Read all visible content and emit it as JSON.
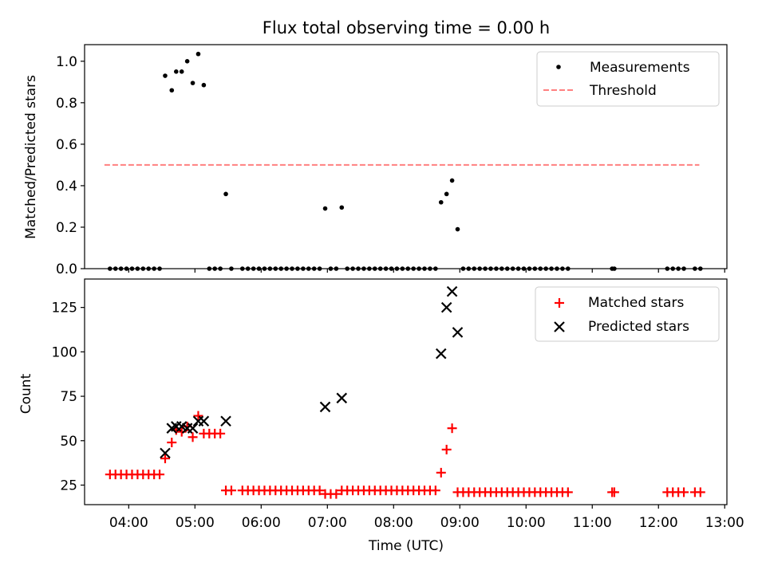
{
  "title": "Flux total observing time = 0.00 h",
  "chart_data": [
    {
      "type": "scatter",
      "panel": "top",
      "ylabel": "Matched/Predicted stars",
      "xlabel": "",
      "ylim": [
        0,
        1.08
      ],
      "yticks": [
        0.0,
        0.2,
        0.4,
        0.6,
        0.8,
        1.0
      ],
      "ytick_labels": [
        "0.0",
        "0.2",
        "0.4",
        "0.6",
        "0.8",
        "1.0"
      ],
      "xlim": [
        "03:20",
        "13:02"
      ],
      "legend_position": "top-right",
      "grid": false,
      "series": [
        {
          "name": "Measurements",
          "marker": "dot",
          "color": "#000000",
          "points": [
            [
              "03:43",
              0
            ],
            [
              "03:48",
              0
            ],
            [
              "03:53",
              0
            ],
            [
              "03:58",
              0
            ],
            [
              "04:03",
              0
            ],
            [
              "04:08",
              0
            ],
            [
              "04:13",
              0
            ],
            [
              "04:18",
              0
            ],
            [
              "04:23",
              0
            ],
            [
              "04:28",
              0
            ],
            [
              "04:33",
              0.93
            ],
            [
              "04:39",
              0.86
            ],
            [
              "04:43",
              0.95
            ],
            [
              "04:48",
              0.95
            ],
            [
              "04:53",
              1.0
            ],
            [
              "04:58",
              0.895
            ],
            [
              "05:03",
              1.035
            ],
            [
              "05:08",
              0.885
            ],
            [
              "05:13",
              0
            ],
            [
              "05:18",
              0
            ],
            [
              "05:23",
              0
            ],
            [
              "05:28",
              0.36
            ],
            [
              "05:33",
              0
            ],
            [
              "05:43",
              0
            ],
            [
              "05:48",
              0
            ],
            [
              "05:53",
              0
            ],
            [
              "05:58",
              0
            ],
            [
              "06:03",
              0
            ],
            [
              "06:08",
              0
            ],
            [
              "06:13",
              0
            ],
            [
              "06:18",
              0
            ],
            [
              "06:23",
              0
            ],
            [
              "06:28",
              0
            ],
            [
              "06:33",
              0
            ],
            [
              "06:38",
              0
            ],
            [
              "06:43",
              0
            ],
            [
              "06:48",
              0
            ],
            [
              "06:53",
              0
            ],
            [
              "06:58",
              0.29
            ],
            [
              "07:03",
              0
            ],
            [
              "07:08",
              0
            ],
            [
              "07:13",
              0.295
            ],
            [
              "07:18",
              0
            ],
            [
              "07:23",
              0
            ],
            [
              "07:28",
              0
            ],
            [
              "07:33",
              0
            ],
            [
              "07:38",
              0
            ],
            [
              "07:43",
              0
            ],
            [
              "07:48",
              0
            ],
            [
              "07:53",
              0
            ],
            [
              "07:58",
              0
            ],
            [
              "08:03",
              0
            ],
            [
              "08:08",
              0
            ],
            [
              "08:13",
              0
            ],
            [
              "08:18",
              0
            ],
            [
              "08:23",
              0
            ],
            [
              "08:28",
              0
            ],
            [
              "08:33",
              0
            ],
            [
              "08:38",
              0
            ],
            [
              "08:43",
              0.32
            ],
            [
              "08:48",
              0.36
            ],
            [
              "08:53",
              0.425
            ],
            [
              "08:58",
              0.19
            ],
            [
              "09:03",
              0
            ],
            [
              "09:08",
              0
            ],
            [
              "09:13",
              0
            ],
            [
              "09:18",
              0
            ],
            [
              "09:23",
              0
            ],
            [
              "09:28",
              0
            ],
            [
              "09:33",
              0
            ],
            [
              "09:38",
              0
            ],
            [
              "09:43",
              0
            ],
            [
              "09:48",
              0
            ],
            [
              "09:53",
              0
            ],
            [
              "09:58",
              0
            ],
            [
              "10:03",
              0
            ],
            [
              "10:08",
              0
            ],
            [
              "10:13",
              0
            ],
            [
              "10:18",
              0
            ],
            [
              "10:23",
              0
            ],
            [
              "10:28",
              0
            ],
            [
              "10:33",
              0
            ],
            [
              "10:38",
              0
            ],
            [
              "11:18",
              0
            ],
            [
              "11:20",
              0
            ],
            [
              "12:08",
              0
            ],
            [
              "12:13",
              0
            ],
            [
              "12:18",
              0
            ],
            [
              "12:23",
              0
            ],
            [
              "12:33",
              0
            ],
            [
              "12:38",
              0
            ]
          ]
        },
        {
          "name": "Threshold",
          "line": "dashed",
          "color": "#ff8080",
          "points": [
            [
              "03:38",
              0.5
            ],
            [
              "12:37",
              0.5
            ]
          ]
        }
      ]
    },
    {
      "type": "scatter",
      "panel": "bottom",
      "xlabel": "Time (UTC)",
      "ylabel": "Count",
      "ylim": [
        14,
        141
      ],
      "yticks": [
        25,
        50,
        75,
        100,
        125
      ],
      "ytick_labels": [
        "25",
        "50",
        "75",
        "100",
        "125"
      ],
      "xlim": [
        "03:20",
        "13:02"
      ],
      "xticks": [
        "04:00",
        "05:00",
        "06:00",
        "07:00",
        "08:00",
        "09:00",
        "10:00",
        "11:00",
        "12:00",
        "13:00"
      ],
      "xtick_labels": [
        "04:00",
        "05:00",
        "06:00",
        "07:00",
        "08:00",
        "09:00",
        "10:00",
        "11:00",
        "12:00",
        "13:00"
      ],
      "legend_position": "top-right",
      "grid": false,
      "series": [
        {
          "name": "Matched stars",
          "marker": "plus",
          "color": "#ff0000",
          "points": [
            [
              "03:43",
              31
            ],
            [
              "03:48",
              31
            ],
            [
              "03:53",
              31
            ],
            [
              "03:58",
              31
            ],
            [
              "04:03",
              31
            ],
            [
              "04:08",
              31
            ],
            [
              "04:13",
              31
            ],
            [
              "04:18",
              31
            ],
            [
              "04:23",
              31
            ],
            [
              "04:28",
              31
            ],
            [
              "04:33",
              40
            ],
            [
              "04:39",
              49
            ],
            [
              "04:43",
              56
            ],
            [
              "04:48",
              55
            ],
            [
              "04:53",
              58
            ],
            [
              "04:58",
              52
            ],
            [
              "05:03",
              64
            ],
            [
              "05:08",
              54
            ],
            [
              "05:13",
              54
            ],
            [
              "05:18",
              54
            ],
            [
              "05:23",
              54
            ],
            [
              "05:28",
              22
            ],
            [
              "05:33",
              22
            ],
            [
              "05:43",
              22
            ],
            [
              "05:48",
              22
            ],
            [
              "05:53",
              22
            ],
            [
              "05:58",
              22
            ],
            [
              "06:03",
              22
            ],
            [
              "06:08",
              22
            ],
            [
              "06:13",
              22
            ],
            [
              "06:18",
              22
            ],
            [
              "06:23",
              22
            ],
            [
              "06:28",
              22
            ],
            [
              "06:33",
              22
            ],
            [
              "06:38",
              22
            ],
            [
              "06:43",
              22
            ],
            [
              "06:48",
              22
            ],
            [
              "06:53",
              22
            ],
            [
              "06:58",
              20
            ],
            [
              "07:03",
              20
            ],
            [
              "07:08",
              20
            ],
            [
              "07:13",
              22
            ],
            [
              "07:18",
              22
            ],
            [
              "07:23",
              22
            ],
            [
              "07:28",
              22
            ],
            [
              "07:33",
              22
            ],
            [
              "07:38",
              22
            ],
            [
              "07:43",
              22
            ],
            [
              "07:48",
              22
            ],
            [
              "07:53",
              22
            ],
            [
              "07:58",
              22
            ],
            [
              "08:03",
              22
            ],
            [
              "08:08",
              22
            ],
            [
              "08:13",
              22
            ],
            [
              "08:18",
              22
            ],
            [
              "08:23",
              22
            ],
            [
              "08:28",
              22
            ],
            [
              "08:33",
              22
            ],
            [
              "08:38",
              22
            ],
            [
              "08:43",
              32
            ],
            [
              "08:48",
              45
            ],
            [
              "08:53",
              57
            ],
            [
              "08:58",
              21
            ],
            [
              "09:03",
              21
            ],
            [
              "09:08",
              21
            ],
            [
              "09:13",
              21
            ],
            [
              "09:18",
              21
            ],
            [
              "09:23",
              21
            ],
            [
              "09:28",
              21
            ],
            [
              "09:33",
              21
            ],
            [
              "09:38",
              21
            ],
            [
              "09:43",
              21
            ],
            [
              "09:48",
              21
            ],
            [
              "09:53",
              21
            ],
            [
              "09:58",
              21
            ],
            [
              "10:03",
              21
            ],
            [
              "10:08",
              21
            ],
            [
              "10:13",
              21
            ],
            [
              "10:18",
              21
            ],
            [
              "10:23",
              21
            ],
            [
              "10:28",
              21
            ],
            [
              "10:33",
              21
            ],
            [
              "10:38",
              21
            ],
            [
              "11:18",
              21
            ],
            [
              "11:20",
              21
            ],
            [
              "12:08",
              21
            ],
            [
              "12:13",
              21
            ],
            [
              "12:18",
              21
            ],
            [
              "12:23",
              21
            ],
            [
              "12:33",
              21
            ],
            [
              "12:38",
              21
            ]
          ]
        },
        {
          "name": "Predicted stars",
          "marker": "x",
          "color": "#000000",
          "points": [
            [
              "04:33",
              43
            ],
            [
              "04:39",
              57
            ],
            [
              "04:43",
              58
            ],
            [
              "04:48",
              58
            ],
            [
              "04:53",
              57
            ],
            [
              "04:58",
              57
            ],
            [
              "05:03",
              61
            ],
            [
              "05:08",
              61
            ],
            [
              "05:28",
              61
            ],
            [
              "06:58",
              69
            ],
            [
              "07:13",
              74
            ],
            [
              "08:43",
              99
            ],
            [
              "08:48",
              125
            ],
            [
              "08:53",
              134
            ],
            [
              "08:58",
              111
            ]
          ]
        }
      ]
    }
  ]
}
